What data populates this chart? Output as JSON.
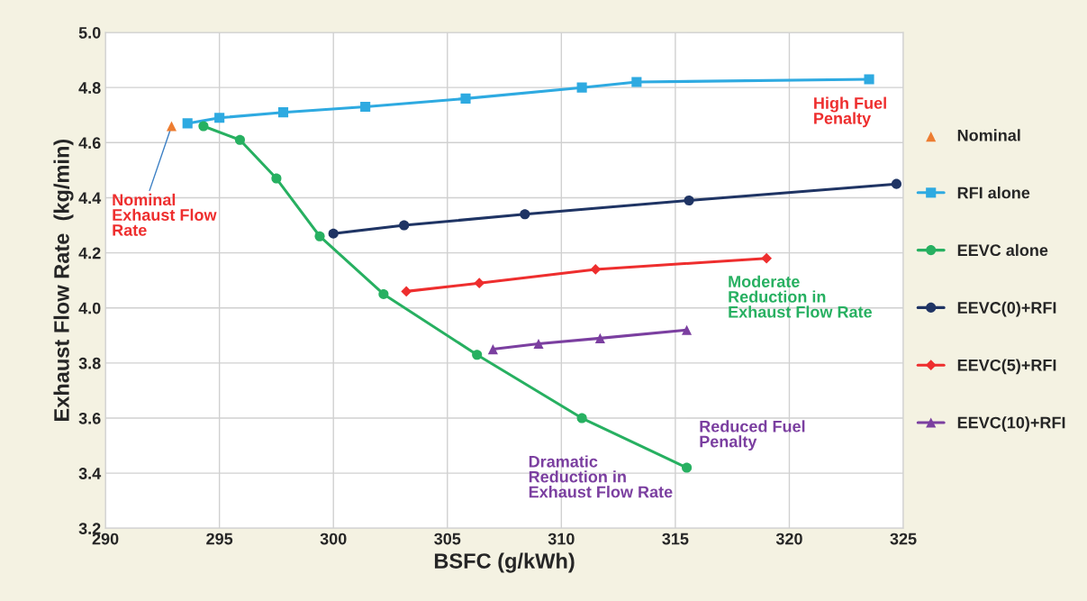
{
  "chart_data": {
    "type": "line",
    "xlabel": "BSFC (g/kWh)",
    "ylabel": "Exhaust Flow Rate  (kg/min)",
    "xlim": [
      290,
      325
    ],
    "xticks": [
      290,
      295,
      300,
      305,
      310,
      315,
      320,
      325
    ],
    "ylim": [
      3.2,
      5.0
    ],
    "yticks": [
      3.2,
      3.4,
      3.6,
      3.8,
      {
        "value": 4,
        "label": "4.0"
      },
      4.2,
      4.4,
      4.6,
      4.8,
      {
        "value": 5,
        "label": "5.0"
      }
    ],
    "grid": true,
    "legend": "right",
    "series": [
      {
        "name": "Nominal",
        "type": "scatter",
        "marker": "triangle",
        "color": "#ed7d31",
        "x": [
          292.9
        ],
        "values": [
          4.66
        ]
      },
      {
        "name": "RFI alone",
        "marker": "square",
        "color": "#2eaae1",
        "x": [
          293.6,
          295.0,
          297.8,
          301.4,
          305.8,
          310.9,
          313.3,
          323.5
        ],
        "values": [
          4.67,
          4.69,
          4.71,
          4.73,
          4.76,
          4.8,
          4.82,
          4.83
        ]
      },
      {
        "name": "EEVC alone",
        "marker": "circle",
        "color": "#27b061",
        "x": [
          294.3,
          295.9,
          297.5,
          299.4,
          302.2,
          306.3,
          310.9,
          315.5
        ],
        "values": [
          4.66,
          4.61,
          4.47,
          4.26,
          4.05,
          3.83,
          3.6,
          3.42
        ]
      },
      {
        "name": "EEVC(0)+RFI",
        "marker": "circle",
        "color": "#1f3464",
        "x": [
          300.0,
          303.1,
          308.4,
          315.6,
          324.7
        ],
        "values": [
          4.27,
          4.3,
          4.34,
          4.39,
          4.45
        ]
      },
      {
        "name": "EEVC(5)+RFI",
        "marker": "diamond",
        "color": "#ee2e2e",
        "x": [
          303.2,
          306.4,
          311.5,
          319.0
        ],
        "values": [
          4.06,
          4.09,
          4.14,
          4.18
        ]
      },
      {
        "name": "EEVC(10)+RFI",
        "marker": "triangle",
        "color": "#7b3fa0",
        "x": [
          307.0,
          309.0,
          311.7,
          315.5
        ],
        "values": [
          3.85,
          3.87,
          3.89,
          3.92
        ]
      }
    ],
    "annotations": [
      {
        "text": "Nominal\nExhaust Flow\nRate",
        "x": 292.9,
        "y": 4.66
      },
      "High Fuel\nPenalty",
      "Moderate\nReduction in\nExhaust Flow Rate",
      "Reduced Fuel\nPenalty",
      "Dramatic\nReduction in\nExhaust Flow Rate"
    ]
  }
}
